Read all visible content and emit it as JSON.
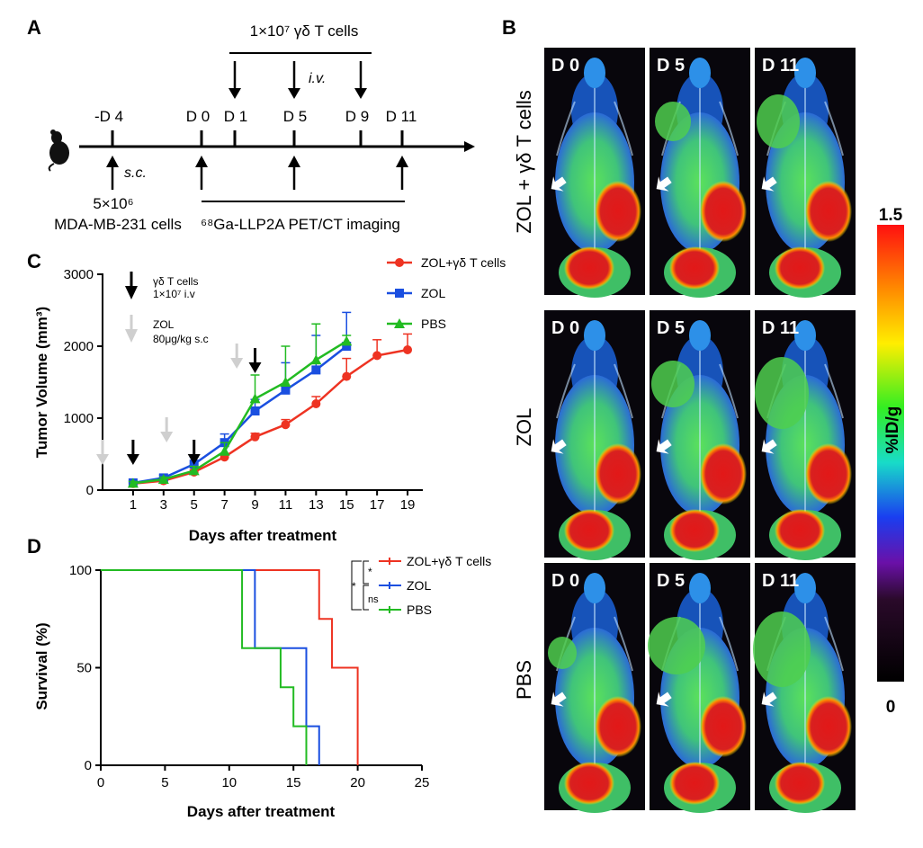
{
  "panels": {
    "a": "A",
    "b": "B",
    "c": "C",
    "d": "D"
  },
  "colors": {
    "zol_gdt": "#ee3322",
    "zol": "#1a4fe0",
    "pbs": "#22bb22",
    "arrow_black": "#000000",
    "arrow_gray": "#cfcfcf"
  },
  "timeline": {
    "cells_label": "1×10⁷ γδ T cells",
    "iv_label": "i.v.",
    "days": [
      "-D 4",
      "D 0",
      "D 1",
      "D 5",
      "D 9",
      "D 11"
    ],
    "sc_label": "s.c.",
    "inoculum_count": "5×10⁶",
    "inoculum_cells": "MDA-MB-231 cells",
    "imaging_label": "⁶⁸Ga-LLP2A PET/CT imaging",
    "mouse_icon": "mouse-icon"
  },
  "chart_data": [
    {
      "type": "line",
      "title": "",
      "xlabel": "Days after treatment",
      "ylabel": "Tumor Volume (mm³)",
      "xlim": [
        -1,
        20
      ],
      "ylim": [
        0,
        3000
      ],
      "xticks": [
        1,
        3,
        5,
        7,
        9,
        11,
        13,
        15,
        17,
        19
      ],
      "yticks": [
        0,
        1000,
        2000,
        3000
      ],
      "series": [
        {
          "name": "ZOL+γδ T cells",
          "color": "#ee3322",
          "marker": "circle",
          "x": [
            1,
            3,
            5,
            7,
            9,
            11,
            13,
            15,
            17,
            19
          ],
          "y": [
            90,
            130,
            250,
            460,
            740,
            910,
            1200,
            1580,
            1870,
            1950
          ],
          "err": [
            20,
            25,
            30,
            40,
            50,
            70,
            100,
            250,
            220,
            220
          ]
        },
        {
          "name": "ZOL",
          "color": "#1a4fe0",
          "marker": "square",
          "x": [
            1,
            3,
            5,
            7,
            9,
            11,
            13,
            15
          ],
          "y": [
            100,
            170,
            360,
            660,
            1100,
            1390,
            1670,
            2000
          ],
          "err": [
            30,
            40,
            100,
            120,
            160,
            380,
            480,
            470
          ]
        },
        {
          "name": "PBS",
          "color": "#22bb22",
          "marker": "triangle",
          "x": [
            1,
            3,
            5,
            7,
            9,
            11,
            13,
            15
          ],
          "y": [
            95,
            150,
            270,
            540,
            1270,
            1500,
            1810,
            2070
          ],
          "err": [
            25,
            30,
            60,
            120,
            330,
            500,
            500,
            80
          ]
        }
      ],
      "annotations": {
        "gdt_label": "γδ T cells",
        "gdt_dose": "1×10⁷ i.v",
        "zol_label": "ZOL",
        "zol_dose": "80μg/kg s.c",
        "black_arrow_days": [
          1,
          5,
          9
        ],
        "gray_arrow_days": [
          -1,
          3.2,
          7.8
        ]
      }
    },
    {
      "type": "line",
      "subtype": "kaplan-meier",
      "title": "",
      "xlabel": "Days after treatment",
      "ylabel": "Survival (%)",
      "xlim": [
        0,
        25
      ],
      "ylim": [
        0,
        100
      ],
      "xticks": [
        0,
        5,
        10,
        15,
        20,
        25
      ],
      "yticks": [
        0,
        50,
        100
      ],
      "series": [
        {
          "name": "ZOL+γδ T cells",
          "color": "#ee3322",
          "x": [
            0,
            17,
            18,
            20
          ],
          "y": [
            100,
            75,
            50,
            0
          ]
        },
        {
          "name": "ZOL",
          "color": "#1a4fe0",
          "x": [
            0,
            12,
            16,
            17
          ],
          "y": [
            100,
            60,
            20,
            0
          ]
        },
        {
          "name": "PBS",
          "color": "#22bb22",
          "x": [
            0,
            11,
            14,
            15,
            16
          ],
          "y": [
            100,
            60,
            40,
            20,
            0
          ]
        }
      ],
      "significance": {
        "outer": "*",
        "upper": "*",
        "lower": "ns"
      }
    }
  ],
  "pet": {
    "rows": [
      "ZOL + γδ T cells",
      "ZOL",
      "PBS"
    ],
    "days": [
      "D 0",
      "D 5",
      "D 11"
    ],
    "colorbar": {
      "max": "1.5",
      "min": "0",
      "label": "%ID/g"
    }
  }
}
